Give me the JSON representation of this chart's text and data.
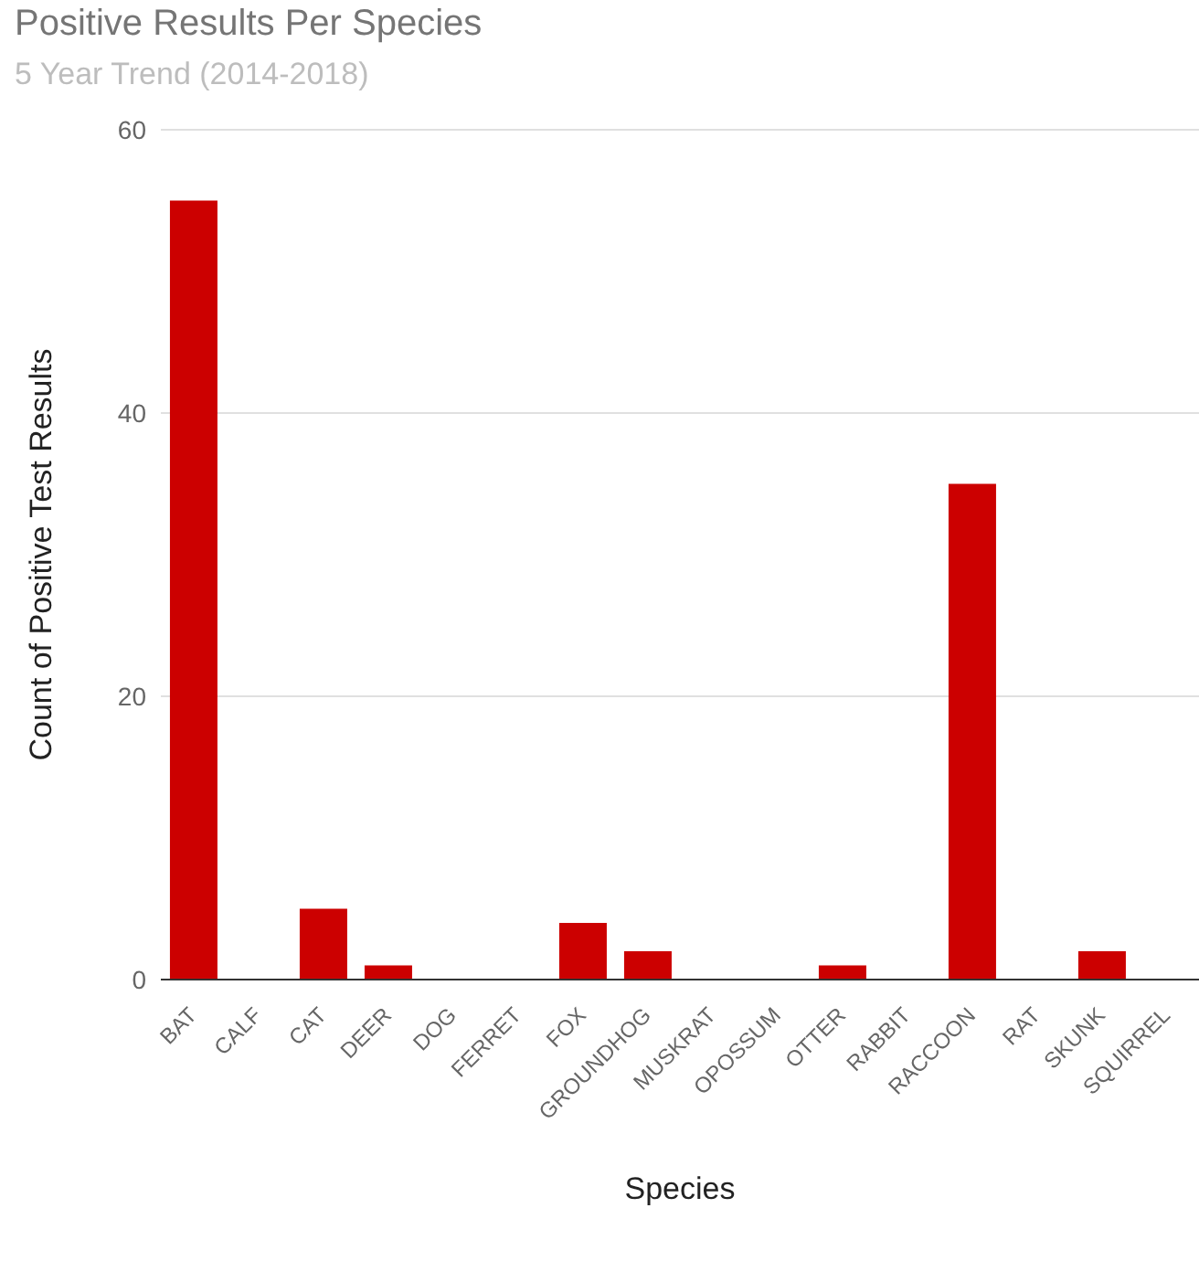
{
  "chart_data": {
    "type": "bar",
    "title": "Positive Results Per Species",
    "subtitle": "5 Year Trend (2014-2018)",
    "xlabel": "Species",
    "ylabel": "Count of Positive Test Results",
    "categories": [
      "BAT",
      "CALF",
      "CAT",
      "DEER",
      "DOG",
      "FERRET",
      "FOX",
      "GROUNDHOG",
      "MUSKRAT",
      "OPOSSUM",
      "OTTER",
      "RABBIT",
      "RACCOON",
      "RAT",
      "SKUNK",
      "SQUIRREL"
    ],
    "values": [
      55,
      0,
      5,
      1,
      0,
      0,
      4,
      2,
      0,
      0,
      1,
      0,
      35,
      0,
      2,
      0
    ],
    "color": "#cc0000",
    "ylim": [
      0,
      60
    ],
    "yticks": [
      0,
      20,
      40,
      60
    ],
    "grid": "y"
  }
}
